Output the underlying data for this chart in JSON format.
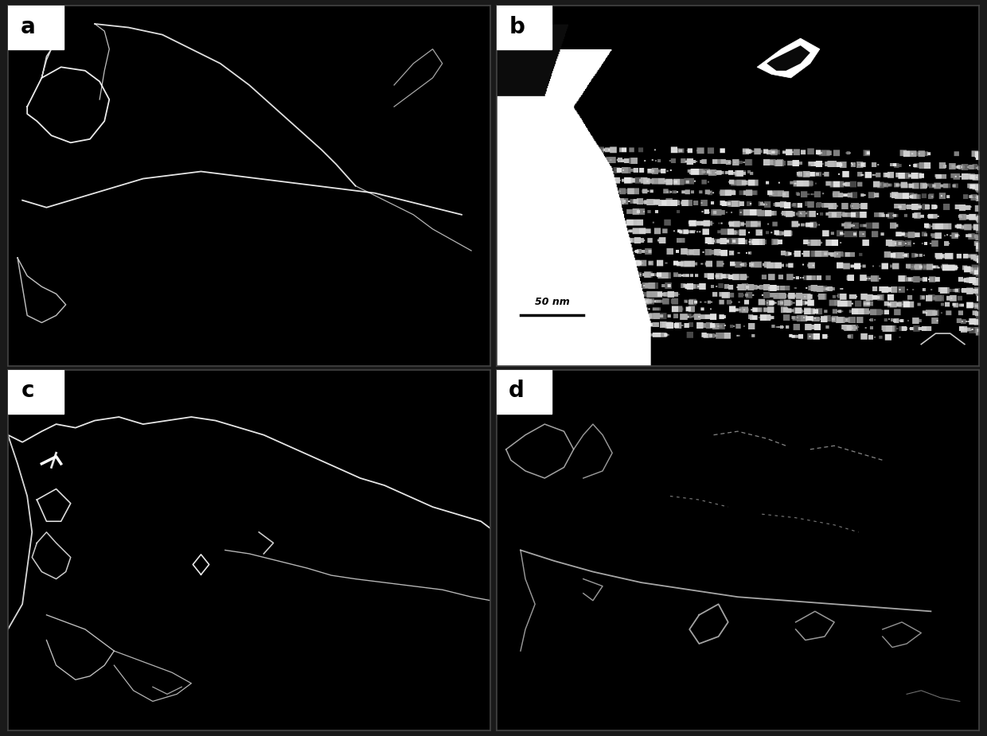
{
  "figure_width": 12.4,
  "figure_height": 9.25,
  "dpi": 100,
  "background_color": "#000000",
  "label_bg_color": "#ffffff",
  "label_text_color": "#000000",
  "label_fontsize": 20,
  "label_fontweight": "bold",
  "labels": [
    "a",
    "b",
    "c",
    "d"
  ],
  "scale_bar_text": "50 nm",
  "outer_bg": "#1a1a1a"
}
